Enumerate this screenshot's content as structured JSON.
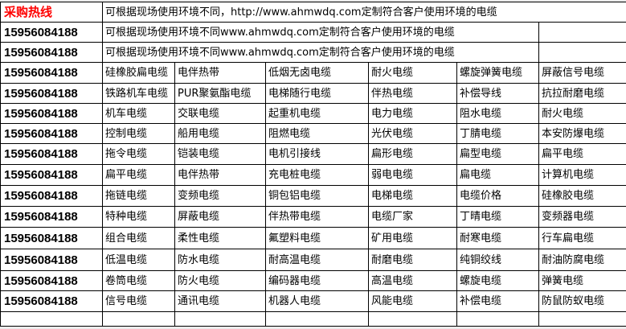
{
  "header": {
    "hotline_label": "采购热线",
    "hotline_color": "#ff0000",
    "intro": "可根据现场使用环境不同，http://www.ahmwdq.com定制符合客户使用环境的电缆"
  },
  "rows_text": [
    {
      "phone": "15956084188",
      "text": "可根据现场使用环境不同www.ahmwdq.com定制符合客户使用环境的电缆"
    },
    {
      "phone": "15956084188",
      "text": "可根据现场使用环境不同www.ahmwdq.com定制符合客户使用环境的电缆"
    }
  ],
  "rows": [
    {
      "phone": "15956084188",
      "cells": [
        "硅橡胶扁电缆",
        "电伴热带",
        "低烟无卤电缆",
        "耐火电缆",
        "螺旋弹簧电缆",
        "屏蔽信号电缆"
      ]
    },
    {
      "phone": "15956084188",
      "cells": [
        "铁路机车电缆",
        "PUR聚氨酯电缆",
        "电梯随行电缆",
        "伴热电缆",
        "补偿导线",
        "抗拉耐磨电缆"
      ]
    },
    {
      "phone": "15956084188",
      "cells": [
        "机车电缆",
        "交联电缆",
        "起重机电缆",
        "电力电缆",
        "阻水电缆",
        "耐火电缆"
      ]
    },
    {
      "phone": "15956084188",
      "cells": [
        "控制电缆",
        "船用电缆",
        "阻燃电缆",
        "光伏电缆",
        "丁腈电缆",
        "本安防爆电缆"
      ]
    },
    {
      "phone": "15956084188",
      "cells": [
        "拖令电缆",
        "铠装电缆",
        "电机引接线",
        "扁形电缆",
        "扁型电缆",
        "扁平电缆"
      ]
    },
    {
      "phone": "15956084188",
      "cells": [
        "扁平电缆",
        "电伴热带",
        "充电桩电缆",
        "弱电电缆",
        "扁电缆",
        "计算机电缆"
      ]
    },
    {
      "phone": "15956084188",
      "cells": [
        "拖链电缆",
        "变频电缆",
        "铜包铝电缆",
        "电梯电缆",
        "电缆价格",
        "硅橡胶电缆"
      ]
    },
    {
      "phone": "15956084188",
      "cells": [
        "特种电缆",
        "屏蔽电缆",
        "伴热带电缆",
        "电缆厂家",
        "丁晴电缆",
        "变频器电缆"
      ]
    },
    {
      "phone": "15956084188",
      "cells": [
        "组合电缆",
        "柔性电缆",
        "氟塑料电缆",
        "矿用电缆",
        "耐寒电缆",
        "行车扁电缆"
      ]
    },
    {
      "phone": "15956084188",
      "cells": [
        "低温电缆",
        "防水电缆",
        "耐高温电缆",
        "耐磨电缆",
        "纯铜绞线",
        "耐油防腐电缆"
      ]
    },
    {
      "phone": "15956084188",
      "cells": [
        "卷筒电缆",
        "防火电缆",
        "编码器电缆",
        "高温电缆",
        "螺旋电缆",
        "弹簧电缆"
      ]
    },
    {
      "phone": "15956084188",
      "cells": [
        "信号电缆",
        "通讯电缆",
        "机器人电缆",
        "风能电缆",
        "补偿电缆",
        "防鼠防蚁电缆"
      ]
    }
  ]
}
